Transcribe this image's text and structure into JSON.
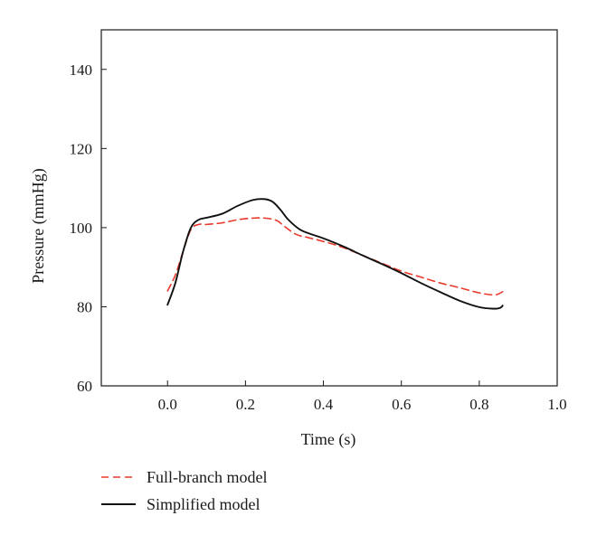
{
  "chart_data": {
    "type": "line",
    "xlabel": "Time (s)",
    "ylabel": "Pressure (mmHg)",
    "xlim": [
      -0.17,
      1.0
    ],
    "ylim": [
      60,
      150
    ],
    "xticks": [
      "0.0",
      "0.2",
      "0.4",
      "0.6",
      "0.8",
      "1.0"
    ],
    "yticks": [
      "60",
      "80",
      "100",
      "120",
      "140"
    ],
    "grid": false,
    "legend_position": "bottom-left, below plot",
    "series": [
      {
        "name": "Full-branch model",
        "color": "#e8392a",
        "style": "dashed",
        "x": [
          0.0,
          0.02,
          0.04,
          0.06,
          0.08,
          0.1,
          0.14,
          0.18,
          0.22,
          0.25,
          0.28,
          0.3,
          0.33,
          0.36,
          0.4,
          0.45,
          0.5,
          0.55,
          0.6,
          0.65,
          0.7,
          0.75,
          0.8,
          0.84,
          0.86
        ],
        "y": [
          84,
          88,
          94,
          99.5,
          100.8,
          100.8,
          101.2,
          102.0,
          102.4,
          102.4,
          101.8,
          100.3,
          98.3,
          97.5,
          96.5,
          95.0,
          93.0,
          91.0,
          89.0,
          87.5,
          86.0,
          84.8,
          83.5,
          83.0,
          83.8
        ]
      },
      {
        "name": "Simplified model",
        "color": "#111111",
        "style": "solid",
        "x": [
          0.0,
          0.02,
          0.04,
          0.06,
          0.08,
          0.1,
          0.14,
          0.18,
          0.22,
          0.25,
          0.27,
          0.29,
          0.31,
          0.34,
          0.37,
          0.4,
          0.45,
          0.5,
          0.55,
          0.6,
          0.65,
          0.7,
          0.75,
          0.8,
          0.84,
          0.855,
          0.86
        ],
        "y": [
          80.5,
          86,
          94,
          100,
          102,
          102.5,
          103.5,
          105.5,
          107.0,
          107.2,
          106.5,
          104.5,
          102.0,
          99.5,
          98.3,
          97.3,
          95.3,
          93.0,
          90.8,
          88.5,
          86.0,
          83.7,
          81.5,
          79.9,
          79.5,
          79.8,
          80.3
        ]
      }
    ]
  }
}
